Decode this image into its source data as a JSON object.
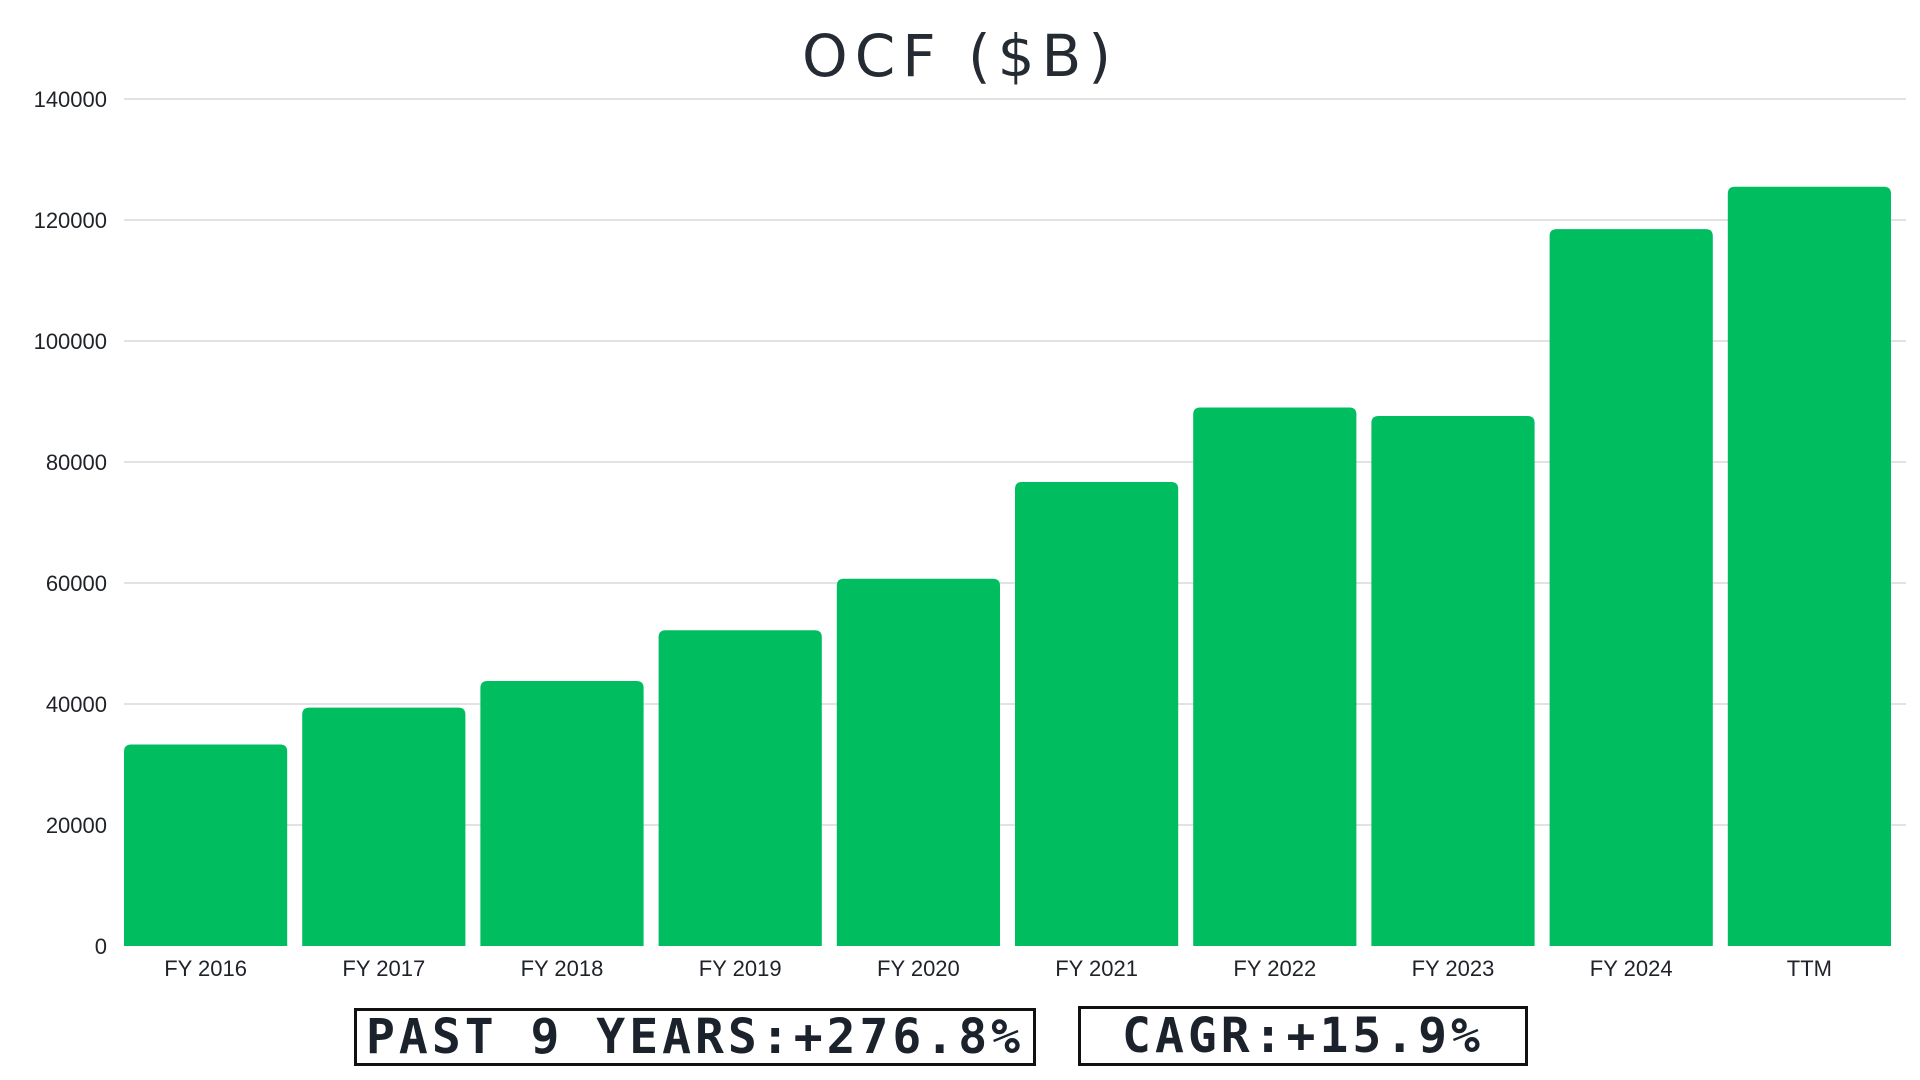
{
  "chart_data": {
    "type": "bar",
    "title": "OCF ($B)",
    "xlabel": "",
    "ylabel": "",
    "categories": [
      "FY 2016",
      "FY 2017",
      "FY 2018",
      "FY 2019",
      "FY 2020",
      "FY 2021",
      "FY 2022",
      "FY 2023",
      "FY 2024",
      "TTM"
    ],
    "values": [
      33300,
      39400,
      43800,
      52200,
      60700,
      76700,
      89000,
      87600,
      118500,
      125500
    ],
    "ylim": [
      0,
      140000
    ],
    "yticks": [
      "0",
      "20000",
      "40000",
      "60000",
      "80000",
      "100000",
      "120000",
      "140000"
    ],
    "grid": true,
    "bar_color": "#00BE60",
    "grid_color": "#D9D9D9"
  },
  "stats": {
    "past_years": "PAST 9 YEARS:+276.8%",
    "cagr": "CAGR:+15.9%"
  }
}
